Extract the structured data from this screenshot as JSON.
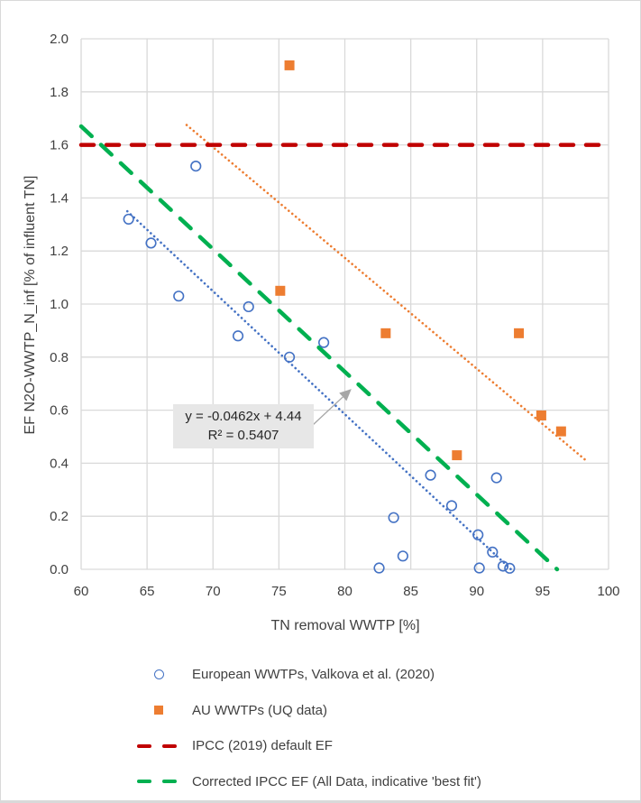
{
  "chart_data": {
    "type": "scatter",
    "title": "",
    "xlabel": "TN removal WWTP [%]",
    "ylabel": "EF N2O-WWTP_N_inf [% of influent TN]",
    "xlim": [
      60,
      100
    ],
    "ylim": [
      0.0,
      2.0
    ],
    "x_ticks": [
      "60",
      "65",
      "70",
      "75",
      "80",
      "85",
      "90",
      "95",
      "100"
    ],
    "y_ticks": [
      "0.0",
      "0.2",
      "0.4",
      "0.6",
      "0.8",
      "1.0",
      "1.2",
      "1.4",
      "1.6",
      "1.8",
      "2.0"
    ],
    "grid": true,
    "legend_position": "bottom",
    "series": [
      {
        "name": "European WWTPs, Valkova et al. (2020)",
        "marker": "open-circle",
        "color": "#4472c4",
        "points": [
          [
            63.6,
            1.32
          ],
          [
            65.3,
            1.23
          ],
          [
            67.4,
            1.03
          ],
          [
            68.7,
            1.52
          ],
          [
            71.9,
            0.88
          ],
          [
            72.7,
            0.99
          ],
          [
            75.8,
            0.8
          ],
          [
            78.4,
            0.855
          ],
          [
            82.6,
            0.005
          ],
          [
            83.7,
            0.195
          ],
          [
            84.4,
            0.05
          ],
          [
            86.5,
            0.355
          ],
          [
            88.1,
            0.24
          ],
          [
            90.1,
            0.13
          ],
          [
            90.2,
            0.005
          ],
          [
            91.2,
            0.065
          ],
          [
            91.5,
            0.345
          ],
          [
            92.0,
            0.012
          ],
          [
            92.5,
            0.004
          ]
        ],
        "trendline": {
          "type": "linear",
          "style": "dotted",
          "from": [
            63.5,
            1.35
          ],
          "to": [
            92.6,
            0.0
          ]
        }
      },
      {
        "name": "AU WWTPs (UQ data)",
        "marker": "filled-square",
        "color": "#ed7d31",
        "points": [
          [
            75.1,
            1.05
          ],
          [
            75.8,
            1.9
          ],
          [
            83.1,
            0.89
          ],
          [
            88.5,
            0.43
          ],
          [
            93.2,
            0.89
          ],
          [
            94.9,
            0.58
          ],
          [
            96.4,
            0.52
          ]
        ],
        "trendline": {
          "type": "linear",
          "style": "dotted",
          "from": [
            68.0,
            1.675
          ],
          "to": [
            98.3,
            0.41
          ]
        }
      },
      {
        "name": "IPCC (2019) default EF",
        "type": "line",
        "style": "dashed",
        "color": "#c00000",
        "points": [
          [
            60,
            1.6
          ],
          [
            100,
            1.6
          ]
        ]
      },
      {
        "name": "Corrected IPCC EF (All Data, indicative 'best fit')",
        "type": "line",
        "style": "dashed",
        "color": "#00b050",
        "points": [
          [
            60,
            1.67
          ],
          [
            96.1,
            0.0
          ]
        ]
      }
    ],
    "annotations": [
      {
        "lines": [
          "y = -0.0462x + 4.44",
          "R² = 0.5407"
        ],
        "arrow_to": [
          80.5,
          0.68
        ]
      }
    ]
  }
}
